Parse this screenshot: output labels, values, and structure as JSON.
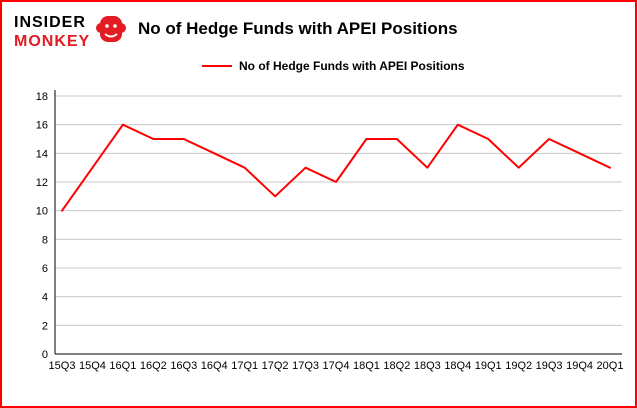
{
  "logo": {
    "line1": "INSIDER",
    "line2": "MONKEY"
  },
  "title": "No of Hedge Funds with APEI Positions",
  "legend": {
    "label": "No of Hedge Funds with APEI Positions"
  },
  "colors": {
    "frame": "#ff0000",
    "line": "#ff0000",
    "grid": "#c8c8c8",
    "axis": "#000000",
    "logo_red": "#e31b23"
  },
  "chart_data": {
    "type": "line",
    "title": "No of Hedge Funds with APEI Positions",
    "categories": [
      "15Q3",
      "15Q4",
      "16Q1",
      "16Q2",
      "16Q3",
      "16Q4",
      "17Q1",
      "17Q2",
      "17Q3",
      "17Q4",
      "18Q1",
      "18Q2",
      "18Q3",
      "18Q4",
      "19Q1",
      "19Q2",
      "19Q3",
      "19Q4",
      "20Q1"
    ],
    "series": [
      {
        "name": "No of Hedge Funds with APEI Positions",
        "color": "#ff0000",
        "values": [
          10,
          13,
          16,
          15,
          15,
          14,
          13,
          11,
          13,
          12,
          15,
          15,
          13,
          16,
          15,
          13,
          15,
          14,
          13
        ]
      }
    ],
    "xlabel": "",
    "ylabel": "",
    "ylim": [
      0,
      18
    ],
    "ytick_step": 2,
    "grid": true,
    "legend_position": "top-left"
  }
}
